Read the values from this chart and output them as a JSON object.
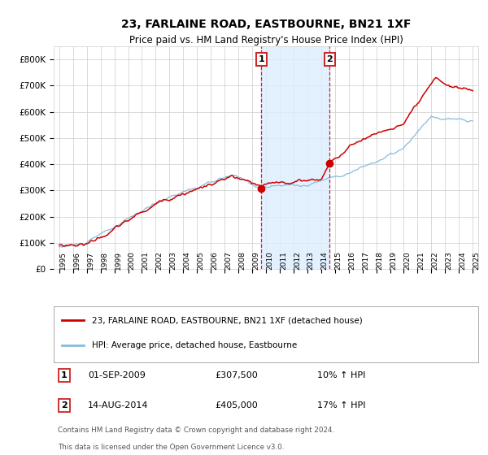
{
  "title": "23, FARLAINE ROAD, EASTBOURNE, BN21 1XF",
  "subtitle": "Price paid vs. HM Land Registry's House Price Index (HPI)",
  "legend_label_red": "23, FARLAINE ROAD, EASTBOURNE, BN21 1XF (detached house)",
  "legend_label_blue": "HPI: Average price, detached house, Eastbourne",
  "sale1_label": "1",
  "sale1_date": "01-SEP-2009",
  "sale1_price": "£307,500",
  "sale1_hpi": "10% ↑ HPI",
  "sale2_label": "2",
  "sale2_date": "14-AUG-2014",
  "sale2_price": "£405,000",
  "sale2_hpi": "17% ↑ HPI",
  "footnote1": "Contains HM Land Registry data © Crown copyright and database right 2024.",
  "footnote2": "This data is licensed under the Open Government Licence v3.0.",
  "red_color": "#cc0000",
  "blue_color": "#88bbdd",
  "shade_color": "#ddeeff",
  "background_color": "#ffffff",
  "grid_color": "#cccccc",
  "ylim": [
    0,
    850000
  ],
  "yticks": [
    0,
    100000,
    200000,
    300000,
    400000,
    500000,
    600000,
    700000,
    800000
  ],
  "ytick_labels": [
    "£0",
    "£100K",
    "£200K",
    "£300K",
    "£400K",
    "£500K",
    "£600K",
    "£700K",
    "£800K"
  ],
  "sale1_x": 2009.67,
  "sale1_y": 307500,
  "sale2_x": 2014.62,
  "sale2_y": 405000,
  "shade_x1": 2009.67,
  "shade_x2": 2014.62,
  "start_year": 1995,
  "end_year": 2025,
  "xlim_left": 1994.6,
  "xlim_right": 2025.4
}
